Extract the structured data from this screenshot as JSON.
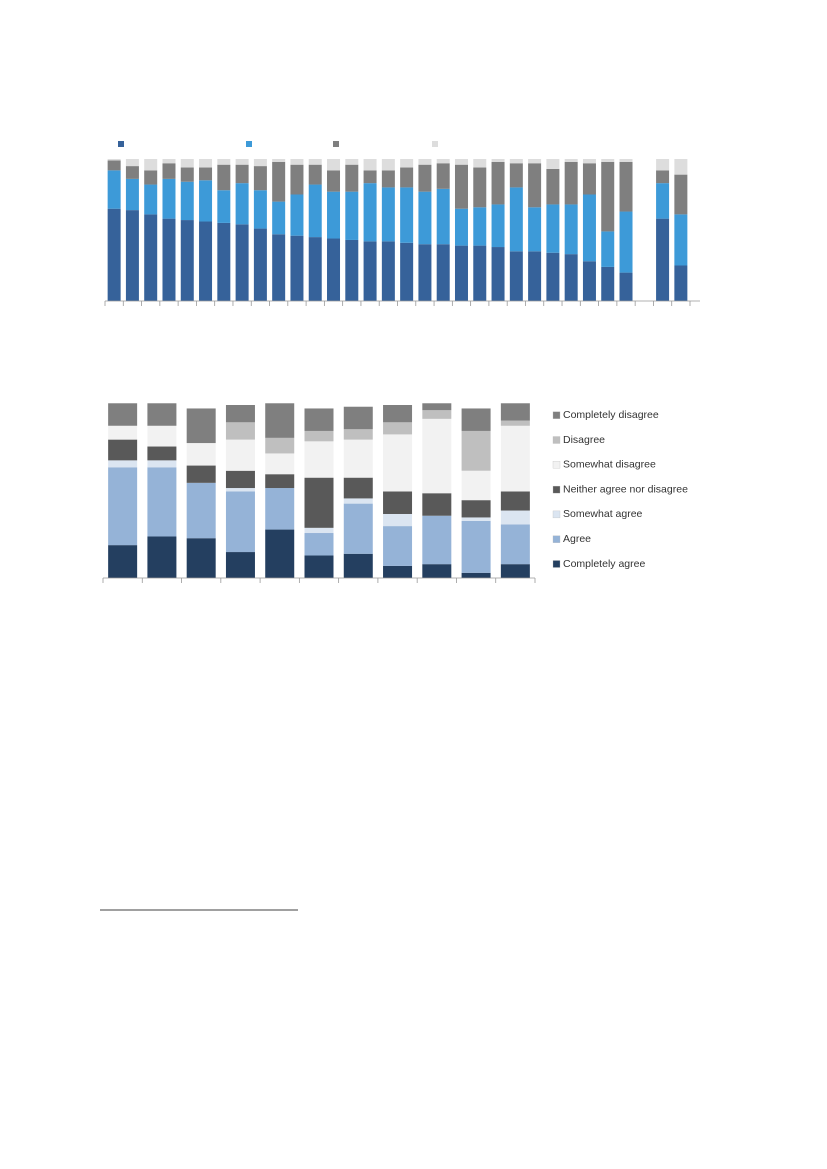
{
  "chart_data": [
    {
      "type": "stacked-bar",
      "categories": [
        null,
        null,
        null,
        null,
        null,
        null,
        null,
        null,
        null,
        null,
        null,
        null,
        null,
        null,
        null,
        null,
        null,
        null,
        null,
        null,
        null,
        null,
        null,
        null,
        null,
        null,
        null,
        null,
        null,
        null,
        null,
        null
      ],
      "ylim": [
        0,
        100
      ],
      "series": [
        {
          "color": "#36629a",
          "values": [
            65,
            64,
            61,
            58,
            57,
            56,
            55,
            54,
            51,
            47,
            46,
            45,
            44,
            43,
            42,
            42,
            41,
            40,
            40,
            39,
            39,
            38,
            35,
            35,
            34,
            33,
            28,
            24,
            20,
            null,
            58,
            25
          ]
        },
        {
          "color": "#3d9ad8",
          "values": [
            27,
            22,
            21,
            28,
            27,
            29,
            23,
            29,
            27,
            23,
            29,
            37,
            33,
            34,
            41,
            38,
            39,
            37,
            39,
            26,
            27,
            30,
            45,
            31,
            34,
            35,
            47,
            25,
            43,
            null,
            25,
            36
          ]
        },
        {
          "color": "#7f7f7f",
          "values": [
            7,
            9,
            10,
            11,
            10,
            9,
            18,
            13,
            17,
            28,
            21,
            14,
            15,
            19,
            9,
            12,
            14,
            19,
            18,
            31,
            28,
            30,
            17,
            31,
            25,
            30,
            22,
            49,
            35,
            null,
            9,
            28
          ]
        },
        {
          "color": "#dddddd",
          "values": [
            1,
            5,
            8,
            3,
            6,
            6,
            4,
            4,
            5,
            2,
            4,
            4,
            8,
            4,
            8,
            8,
            6,
            4,
            3,
            4,
            6,
            2,
            3,
            3,
            7,
            2,
            3,
            2,
            2,
            null,
            8,
            11
          ]
        }
      ]
    },
    {
      "type": "stacked-bar",
      "categories": [
        null,
        null,
        null,
        null,
        null,
        null,
        null,
        null,
        null,
        null,
        null
      ],
      "ylim": [
        0,
        100
      ],
      "series": [
        {
          "name": "Completely agree",
          "color": "#243f60",
          "values": [
            19,
            24,
            23,
            15,
            28,
            13,
            14,
            7,
            8,
            3,
            8
          ]
        },
        {
          "name": "Agree",
          "color": "#95b3d7",
          "values": [
            45,
            40,
            32,
            35,
            24,
            13,
            29,
            23,
            28,
            30,
            23
          ]
        },
        {
          "name": "Somewhat agree",
          "color": "#dbe5f1",
          "values": [
            4,
            4,
            0,
            2,
            0,
            3,
            3,
            7,
            0,
            2,
            8
          ]
        },
        {
          "name": "Neither agree nor disagree",
          "color": "#595959",
          "values": [
            12,
            8,
            10,
            10,
            8,
            29,
            12,
            13,
            13,
            10,
            11
          ]
        },
        {
          "name": "Somewhat disagree",
          "color": "#f2f2f2",
          "values": [
            8,
            12,
            13,
            18,
            12,
            21,
            22,
            33,
            43,
            17,
            38
          ]
        },
        {
          "name": "Disagree",
          "color": "#bfbfbf",
          "values": [
            0,
            0,
            0,
            10,
            9,
            6,
            6,
            7,
            5,
            23,
            3
          ]
        },
        {
          "name": "Completely disagree",
          "color": "#7f7f7f",
          "values": [
            13,
            13,
            20,
            10,
            20,
            13,
            13,
            10,
            4,
            13,
            10
          ]
        }
      ]
    }
  ]
}
